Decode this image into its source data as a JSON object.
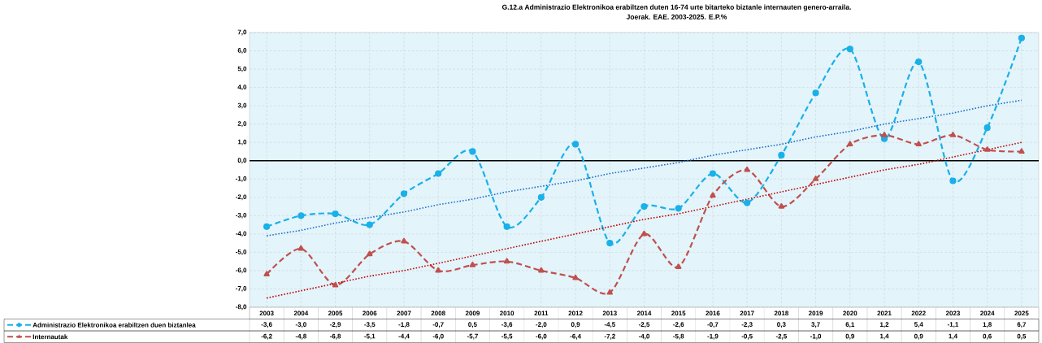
{
  "chart_data": {
    "type": "line",
    "title": "G.12.a Administrazio Elektronikoa erabiltzen duten 16-74 urte bitarteko biztanle internauten genero-arraila.",
    "subtitle": "Joerak. EAE. 2003-2025. E.P.%",
    "categories": [
      "2003",
      "2004",
      "2005",
      "2006",
      "2007",
      "2008",
      "2009",
      "2010",
      "2011",
      "2012",
      "2013",
      "2014",
      "2015",
      "2016",
      "2017",
      "2018",
      "2019",
      "2020",
      "2021",
      "2022",
      "2023",
      "2024",
      "2025"
    ],
    "series": [
      {
        "name": "Administrazio Elektronikoa erabiltzen duen biztanlea",
        "color": "#1ab0e8",
        "marker": "circle",
        "line_style": "dashed",
        "values": [
          -3.6,
          -3.0,
          -2.9,
          -3.5,
          -1.8,
          -0.7,
          0.5,
          -3.6,
          -2.0,
          0.9,
          -4.5,
          -2.5,
          -2.6,
          -0.7,
          -2.3,
          0.3,
          3.7,
          6.1,
          1.2,
          5.4,
          -1.1,
          1.8,
          6.7
        ],
        "value_labels": [
          "-3,6",
          "-3,0",
          "-2,9",
          "-3,5",
          "-1,8",
          "-0,7",
          "0,5",
          "-3,6",
          "-2,0",
          "0,9",
          "-4,5",
          "-2,5",
          "-2,6",
          "-0,7",
          "-2,3",
          "0,3",
          "3,7",
          "6,1",
          "1,2",
          "5,4",
          "-1,1",
          "1,8",
          "6,7"
        ]
      },
      {
        "name": "Internautak",
        "color": "#c0504d",
        "marker": "triangle",
        "line_style": "dashed",
        "values": [
          -6.2,
          -4.8,
          -6.8,
          -5.1,
          -4.4,
          -6.0,
          -5.7,
          -5.5,
          -6.0,
          -6.4,
          -7.2,
          -4.0,
          -5.8,
          -1.9,
          -0.5,
          -2.5,
          -1.0,
          0.9,
          1.4,
          0.9,
          1.4,
          0.6,
          0.5
        ],
        "value_labels": [
          "-6,2",
          "-4,8",
          "-6,8",
          "-5,1",
          "-4,4",
          "-6,0",
          "-5,7",
          "-5,5",
          "-6,0",
          "-6,4",
          "-7,2",
          "-4,0",
          "-5,8",
          "-1,9",
          "-0,5",
          "-2,5",
          "-1,0",
          "0,9",
          "1,4",
          "0,9",
          "1,4",
          "0,6",
          "0,5"
        ]
      },
      {
        "type": "line",
        "color": "#1f6fc5",
        "marker": "none",
        "line_style": "dotted",
        "values": [
          -4.1,
          -3.8,
          -3.4,
          -3.1,
          -2.8,
          -2.4,
          -2.1,
          -1.7,
          -1.4,
          -1.1,
          -0.7,
          -0.4,
          -0.1,
          0.3,
          0.6,
          0.9,
          1.3,
          1.6,
          2.0,
          2.3,
          2.6,
          3.0,
          3.3
        ]
      },
      {
        "type": "line",
        "color": "#c00000",
        "marker": "none",
        "line_style": "dotted",
        "values": [
          -7.5,
          -7.1,
          -6.7,
          -6.3,
          -6.0,
          -5.6,
          -5.2,
          -4.8,
          -4.4,
          -4.0,
          -3.6,
          -3.2,
          -2.9,
          -2.5,
          -2.1,
          -1.7,
          -1.3,
          -0.9,
          -0.5,
          -0.2,
          0.2,
          0.6,
          1.0
        ]
      }
    ],
    "ylim": [
      -8,
      7
    ],
    "yticks": [
      {
        "value": -8,
        "label": "-8,0"
      },
      {
        "value": -7,
        "label": "-7,0"
      },
      {
        "value": -6,
        "label": "-6,0"
      },
      {
        "value": -5,
        "label": "-5,0"
      },
      {
        "value": -4,
        "label": "-4,0"
      },
      {
        "value": -3,
        "label": "-3,0"
      },
      {
        "value": -2,
        "label": "-2,0"
      },
      {
        "value": -1,
        "label": "-1,0"
      },
      {
        "value": 0,
        "label": "0,0"
      },
      {
        "value": 1,
        "label": "1,0"
      },
      {
        "value": 2,
        "label": "2,0"
      },
      {
        "value": 3,
        "label": "3,0"
      },
      {
        "value": 4,
        "label": "4,0"
      },
      {
        "value": 5,
        "label": "5,0"
      },
      {
        "value": 6,
        "label": "6,0"
      },
      {
        "value": 7,
        "label": "7,0"
      }
    ],
    "grid": true,
    "legend": "bottom",
    "ref_lines": [
      {
        "axis": "y",
        "value": 0,
        "color": "#000000"
      }
    ]
  }
}
